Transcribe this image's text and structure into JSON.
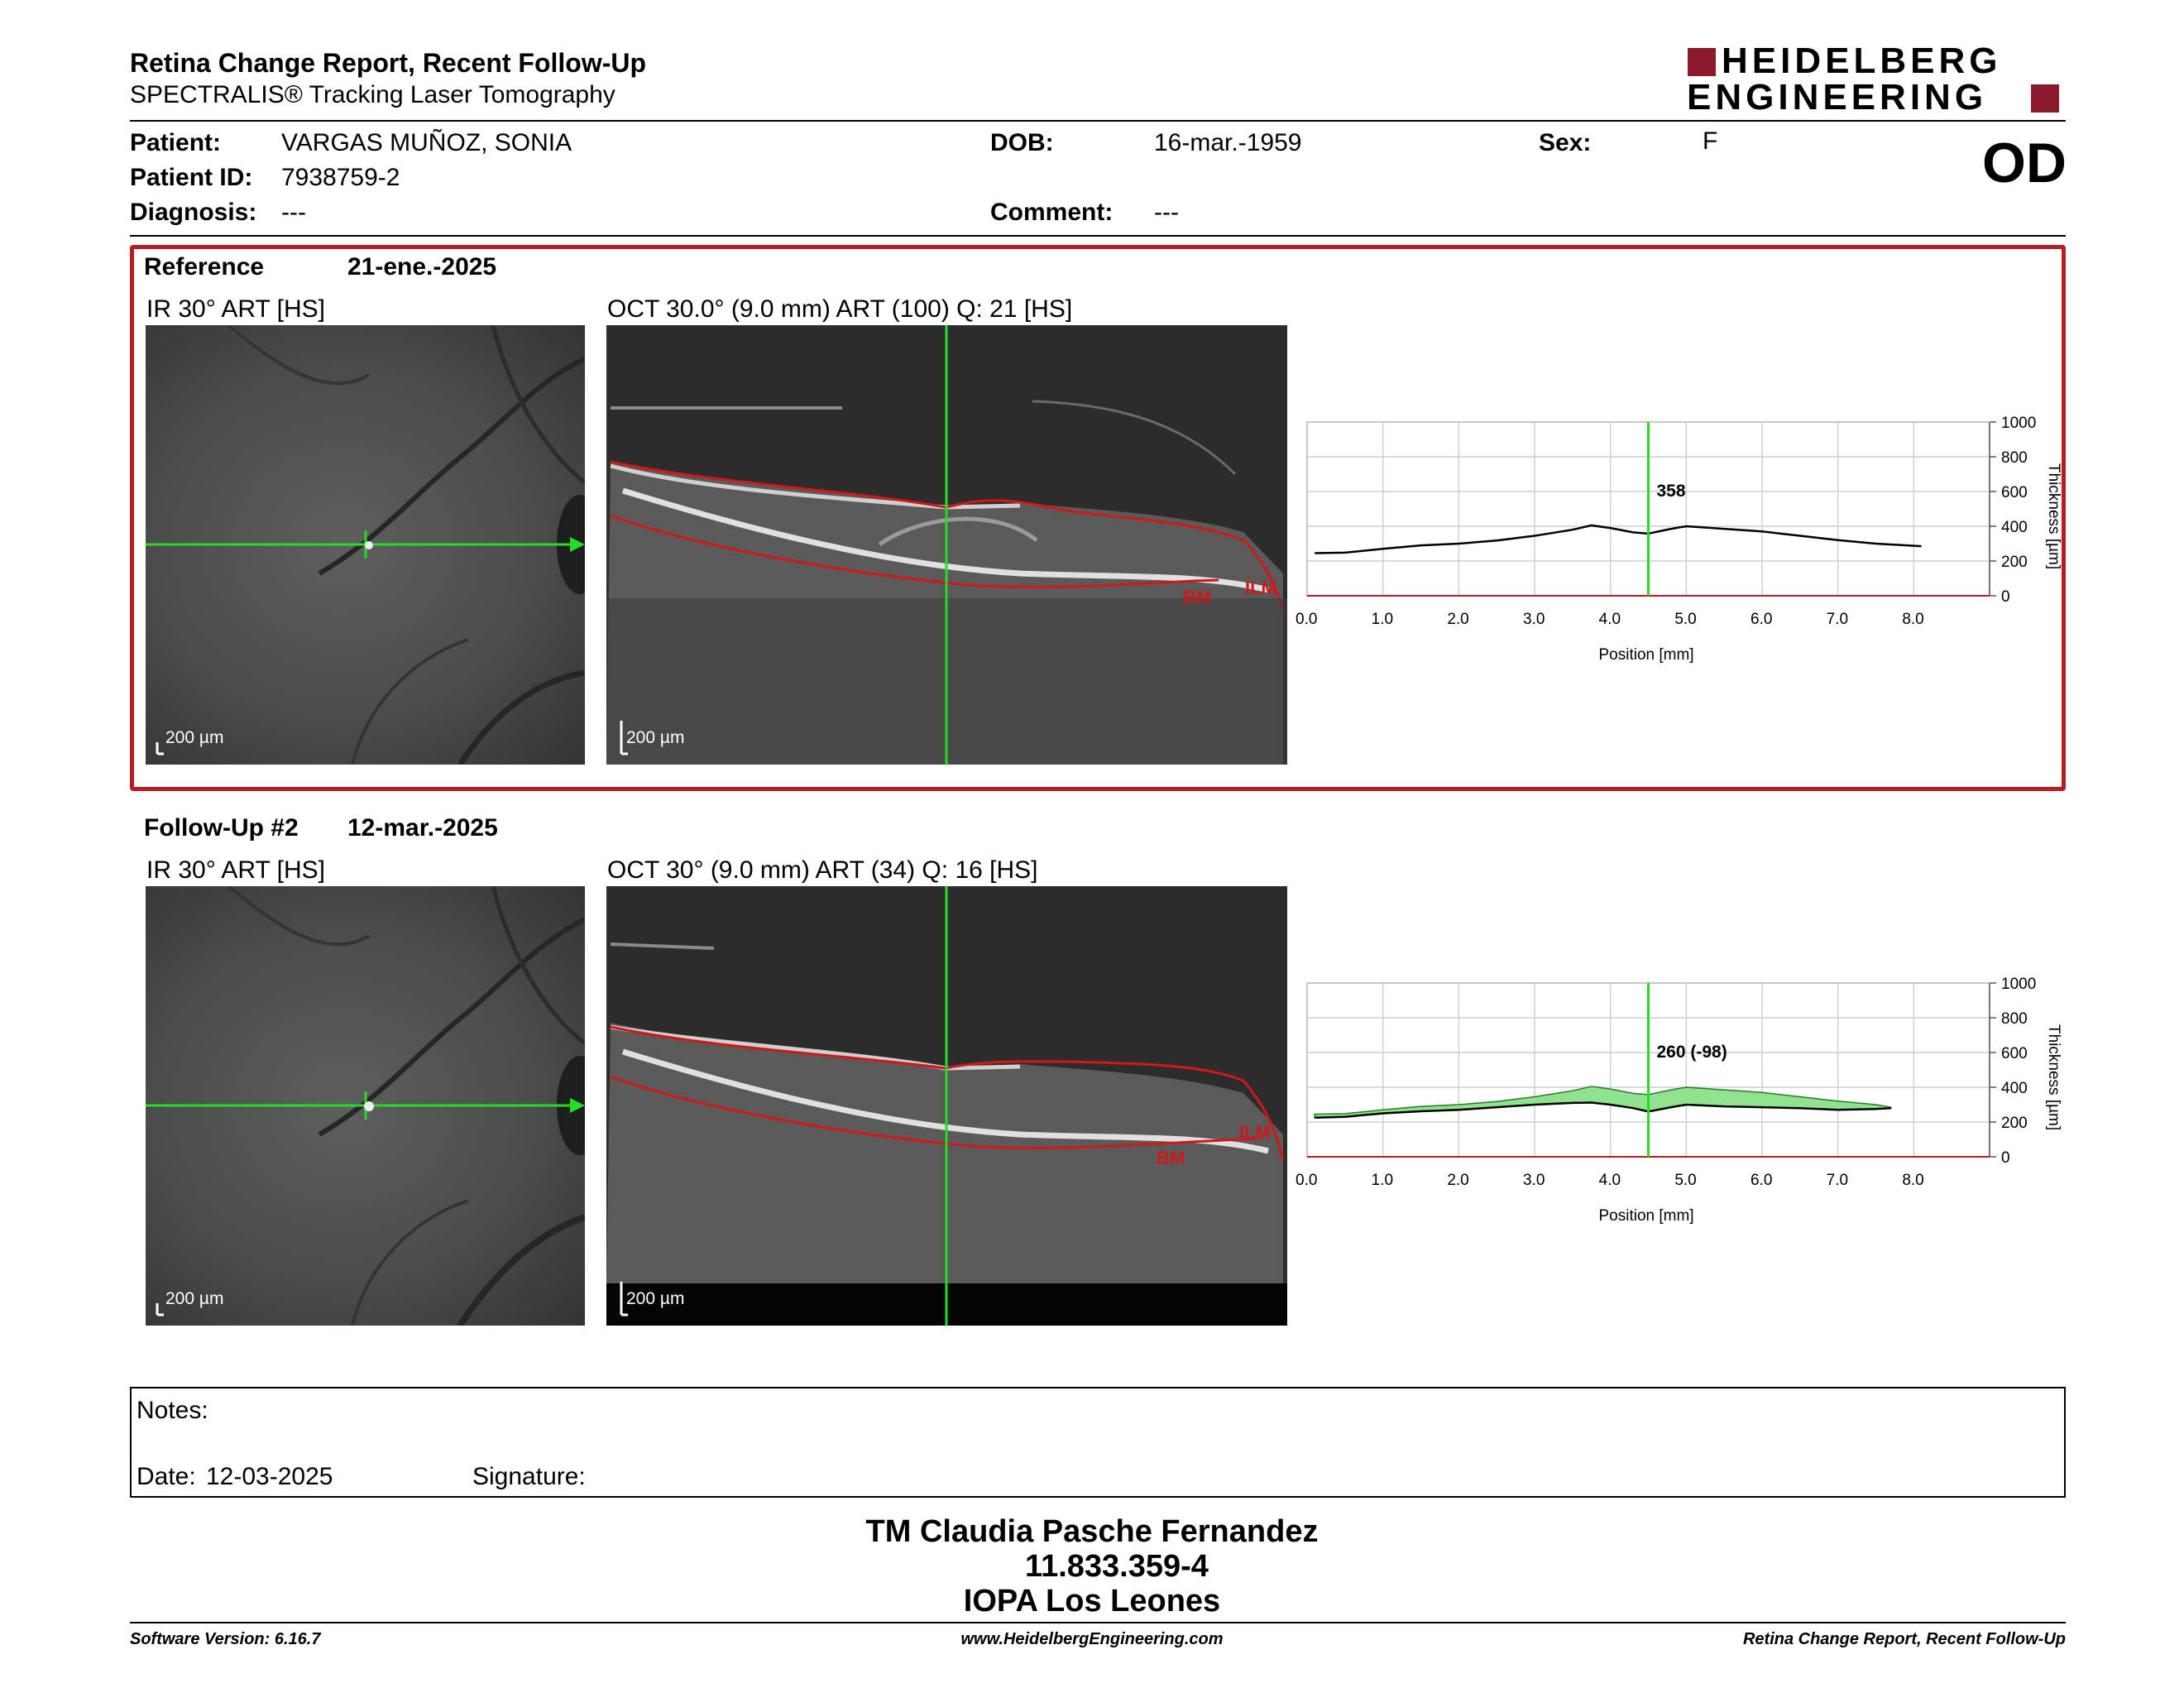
{
  "header": {
    "title": "Retina Change Report, Recent Follow-Up",
    "subtitle": "SPECTRALIS® Tracking Laser Tomography",
    "logo_line1": "HEIDELBERG",
    "logo_line2": "ENGINEERING",
    "eye": "OD"
  },
  "patient": {
    "patient_label": "Patient:",
    "patient_value": "VARGAS MUÑOZ, SONIA",
    "id_label": "Patient ID:",
    "id_value": "7938759-2",
    "diagnosis_label": "Diagnosis:",
    "diagnosis_value": "---",
    "dob_label": "DOB:",
    "dob_value": "16-mar.-1959",
    "comment_label": "Comment:",
    "comment_value": "---",
    "sex_label": "Sex:",
    "sex_value": "F"
  },
  "reference": {
    "label": "Reference",
    "date": "21-ene.-2025",
    "ir_caption": "IR 30° ART [HS]",
    "oct_caption": "OCT 30.0° (9.0 mm) ART (100) Q: 21 [HS]",
    "scale_ir": "200 µm",
    "scale_oct": "200 µm",
    "ilm_label": "ILM",
    "bm_label": "BM"
  },
  "followup": {
    "label": "Follow-Up #2",
    "date": "12-mar.-2025",
    "ir_caption": "IR 30° ART [HS]",
    "oct_caption": "OCT 30° (9.0 mm) ART (34) Q: 16 [HS]",
    "scale_ir": "200 µm",
    "scale_oct": "200 µm",
    "ilm_label": "ILM",
    "bm_label": "BM"
  },
  "colors": {
    "frame": "#b71c22",
    "scan_line": "#22dd22",
    "segmentation": "#d01818",
    "fill_change": "#8fe38f"
  },
  "chart_data": [
    {
      "type": "line",
      "title": "",
      "xlabel": "Position [mm]",
      "ylabel": "Thickness [µm]",
      "xlim": [
        0.0,
        9.0
      ],
      "ylim": [
        0,
        1000
      ],
      "xticks": [
        "0.0",
        "1.0",
        "2.0",
        "3.0",
        "4.0",
        "5.0",
        "6.0",
        "7.0",
        "8.0"
      ],
      "yticks": [
        "0",
        "200",
        "400",
        "600",
        "800",
        "1000"
      ],
      "grid": true,
      "marker_x": 4.5,
      "marker_label": "358",
      "series": [
        {
          "x": [
            0.1,
            0.5,
            1.0,
            1.5,
            2.0,
            2.5,
            3.0,
            3.5,
            3.75,
            4.0,
            4.3,
            4.5,
            4.8,
            5.0,
            5.5,
            6.0,
            6.5,
            7.0,
            7.5,
            8.1
          ],
          "values": [
            245,
            248,
            270,
            290,
            300,
            318,
            345,
            380,
            405,
            390,
            365,
            358,
            385,
            400,
            385,
            370,
            345,
            320,
            300,
            285
          ]
        }
      ]
    },
    {
      "type": "area",
      "title": "",
      "xlabel": "Position [mm]",
      "ylabel": "Thickness [µm]",
      "xlim": [
        0.0,
        9.0
      ],
      "ylim": [
        0,
        1000
      ],
      "xticks": [
        "0.0",
        "1.0",
        "2.0",
        "3.0",
        "4.0",
        "5.0",
        "6.0",
        "7.0",
        "8.0"
      ],
      "yticks": [
        "0",
        "200",
        "400",
        "600",
        "800",
        "1000"
      ],
      "grid": true,
      "marker_x": 4.5,
      "marker_label": "260 (-98)",
      "series": [
        {
          "x": [
            0.1,
            0.5,
            1.0,
            1.5,
            2.0,
            2.5,
            3.0,
            3.5,
            3.75,
            4.0,
            4.3,
            4.5,
            4.8,
            5.0,
            5.5,
            6.0,
            6.5,
            7.0,
            7.5,
            7.7
          ],
          "values": [
            225,
            230,
            250,
            262,
            270,
            285,
            300,
            310,
            312,
            300,
            280,
            260,
            285,
            300,
            290,
            285,
            280,
            270,
            275,
            280
          ]
        },
        {
          "x": [
            0.1,
            0.5,
            1.0,
            1.5,
            2.0,
            2.5,
            3.0,
            3.5,
            3.75,
            4.0,
            4.3,
            4.5,
            4.8,
            5.0,
            5.5,
            6.0,
            6.5,
            7.0,
            7.5,
            7.7
          ],
          "values": [
            245,
            248,
            270,
            290,
            300,
            318,
            345,
            380,
            405,
            390,
            365,
            358,
            385,
            400,
            385,
            370,
            345,
            320,
            300,
            285
          ]
        }
      ]
    }
  ],
  "notes": {
    "notes_label": "Notes:",
    "date_label": "Date:",
    "date_value": "12-03-2025",
    "signature_label": "Signature:"
  },
  "signoff": {
    "line1": "TM Claudia Pasche Fernandez",
    "line2": "11.833.359-4",
    "line3": "IOPA Los Leones"
  },
  "footer": {
    "software": "Software Version: 6.16.7",
    "website": "www.HeidelbergEngineering.com",
    "report": "Retina Change Report, Recent Follow-Up"
  }
}
